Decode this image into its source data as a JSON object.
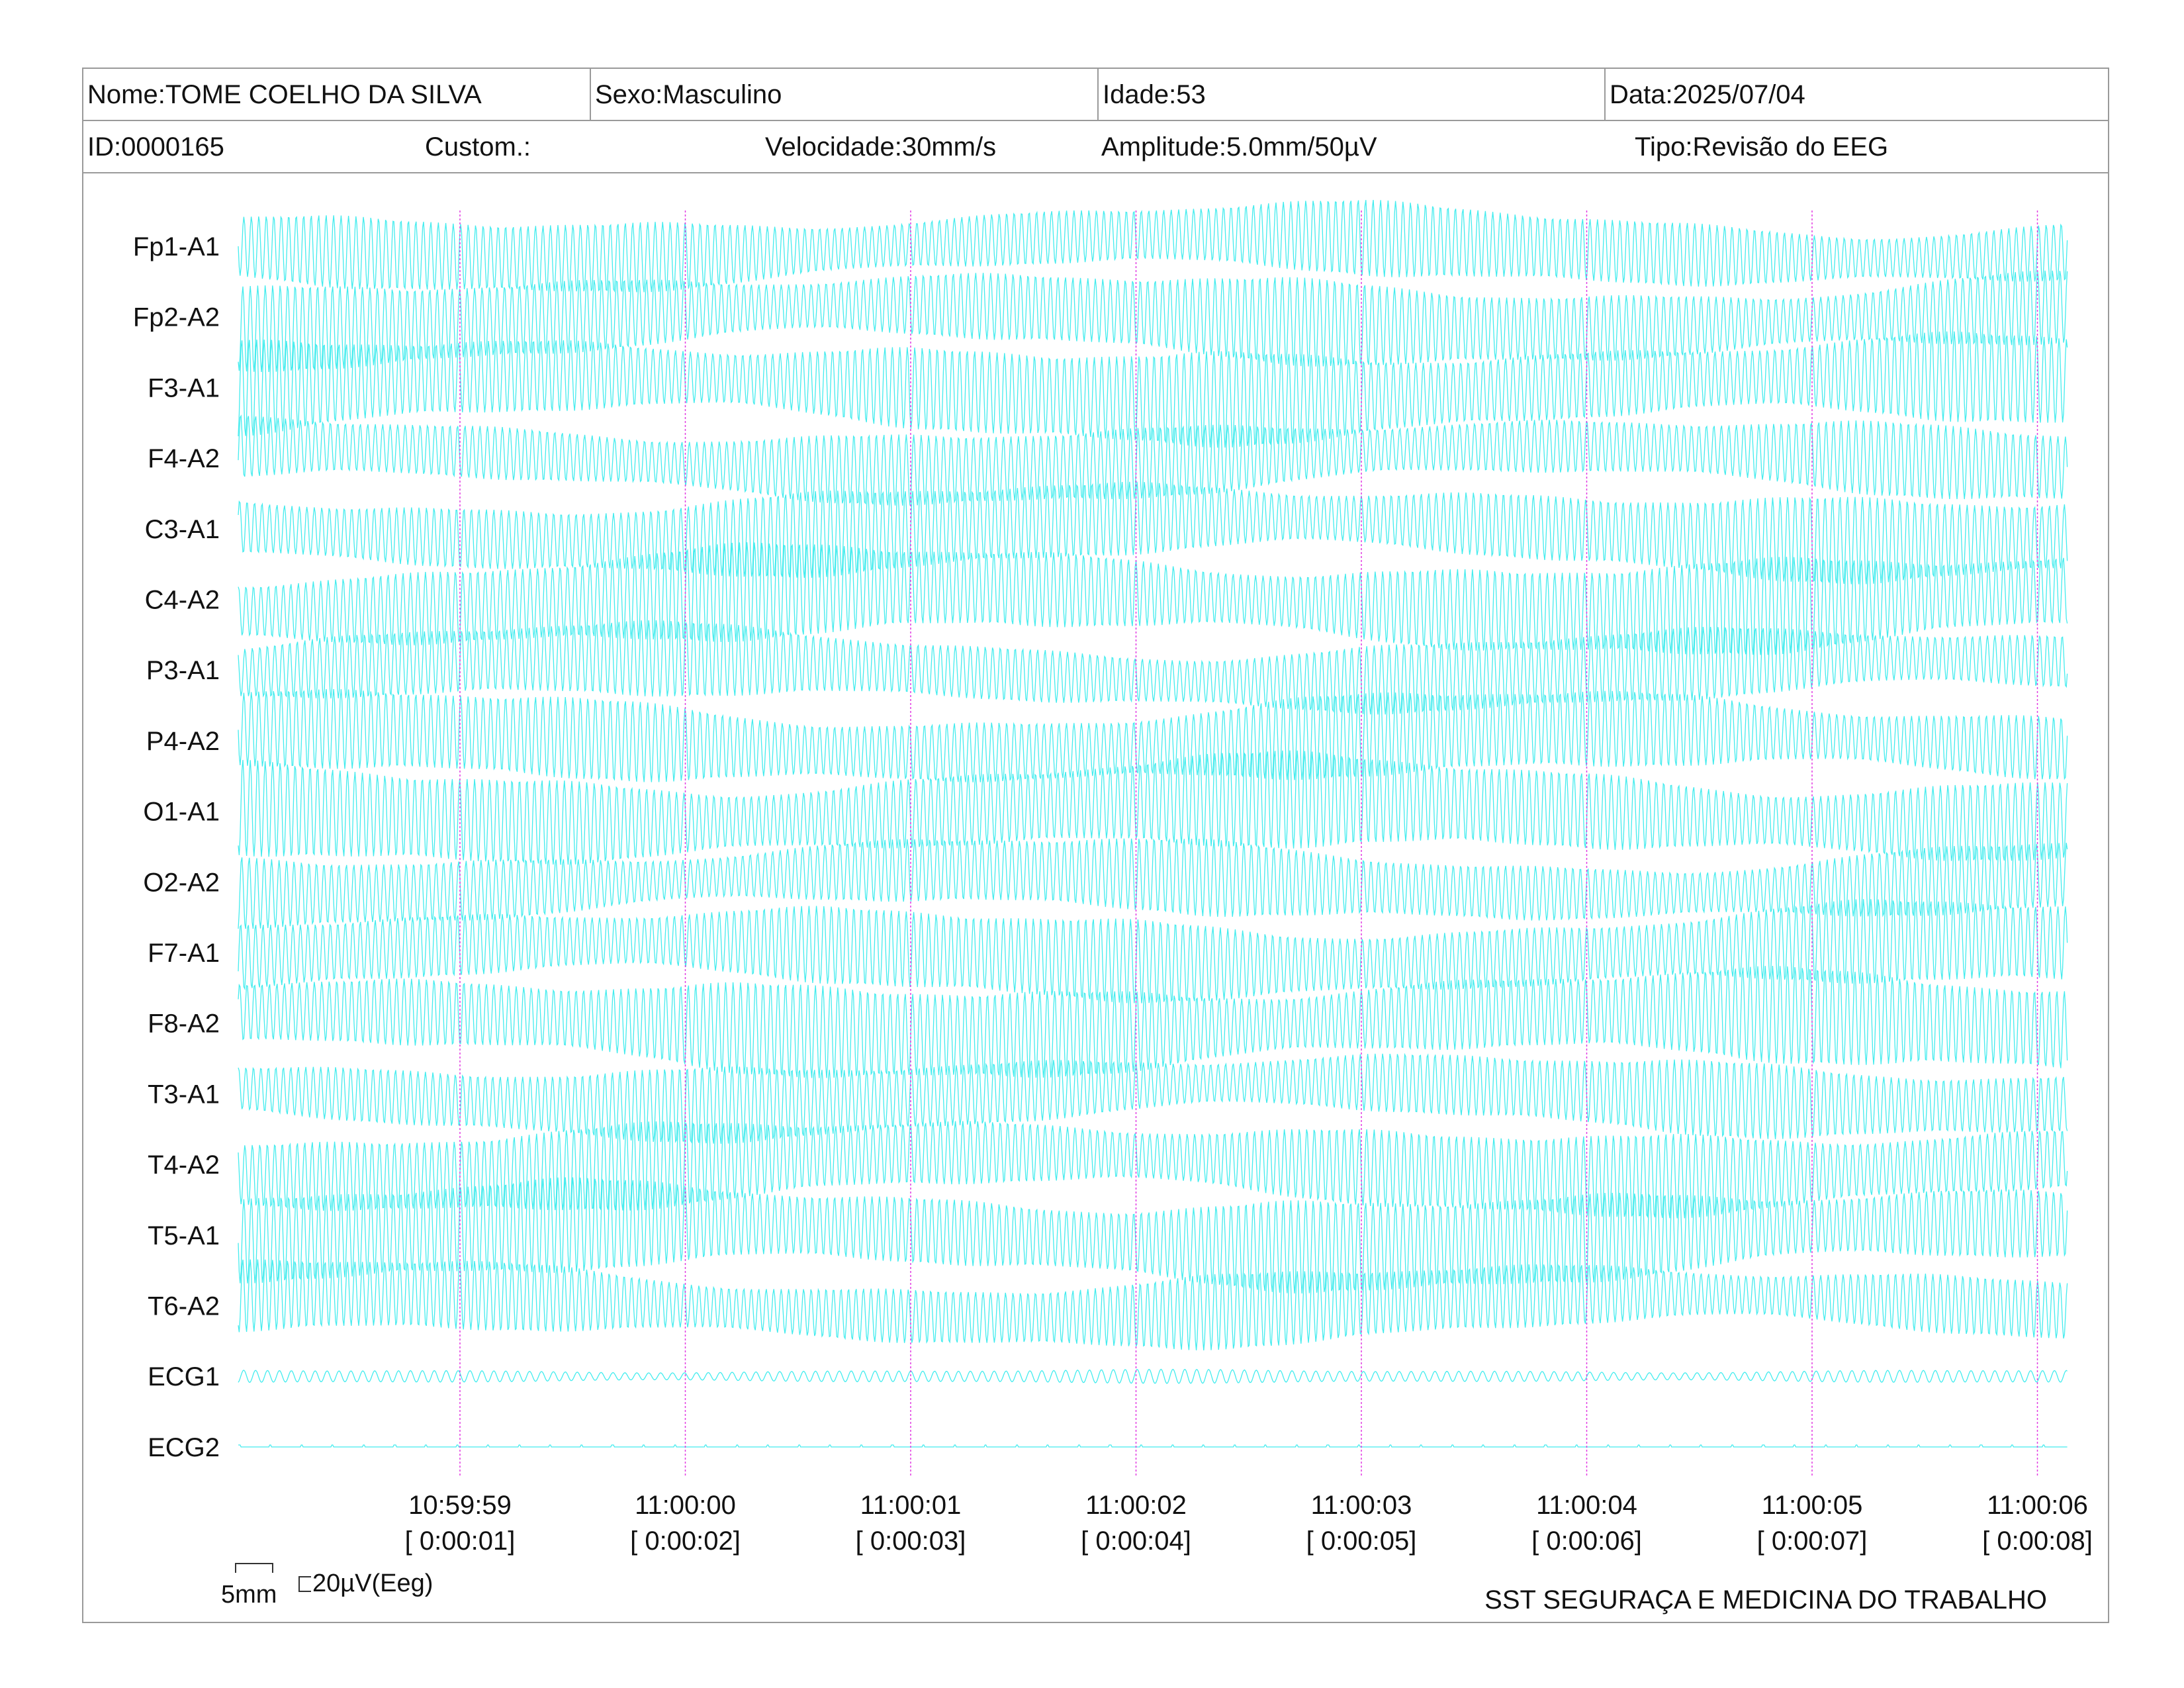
{
  "header": {
    "nome": "Nome:TOME COELHO DA SILVA",
    "sexo": "Sexo:Masculino",
    "idade": "Idade:53",
    "data": "Data:2025/07/04",
    "id": "ID:0000165",
    "custom": "Custom.:",
    "velocidade": "Velocidade:30mm/s",
    "amplitude": "Amplitude:5.0mm/50µV",
    "tipo": "Tipo:Revisão do EEG"
  },
  "footer": {
    "company": "SST SEGURAÇA E MEDICINA DO TRABALHO"
  },
  "scale_legend": {
    "time_scale": "5mm",
    "amplitude_scale": "20µV(Eeg)"
  },
  "colors": {
    "trace": "#44ecee",
    "time_marker": "#e23ae2",
    "border": "#9a9a9a"
  },
  "chart_data": {
    "type": "line",
    "channels": [
      "Fp1-A1",
      "Fp2-A2",
      "F3-A1",
      "F4-A2",
      "C3-A1",
      "C4-A2",
      "P3-A1",
      "P4-A2",
      "O1-A1",
      "O2-A2",
      "F7-A1",
      "F8-A2",
      "T3-A1",
      "T4-A2",
      "T5-A1",
      "T6-A2",
      "ECG1",
      "ECG2"
    ],
    "time_markers": [
      {
        "time": "10:59:59",
        "elapsed": "[ 0:00:01]"
      },
      {
        "time": "11:00:00",
        "elapsed": "[ 0:00:02]"
      },
      {
        "time": "11:00:01",
        "elapsed": "[ 0:00:03]"
      },
      {
        "time": "11:00:02",
        "elapsed": "[ 0:00:04]"
      },
      {
        "time": "11:00:03",
        "elapsed": "[ 0:00:05]"
      },
      {
        "time": "11:00:04",
        "elapsed": "[ 0:00:06]"
      },
      {
        "time": "11:00:05",
        "elapsed": "[ 0:00:07]"
      },
      {
        "time": "11:00:06",
        "elapsed": "[ 0:00:08]"
      }
    ]
  }
}
